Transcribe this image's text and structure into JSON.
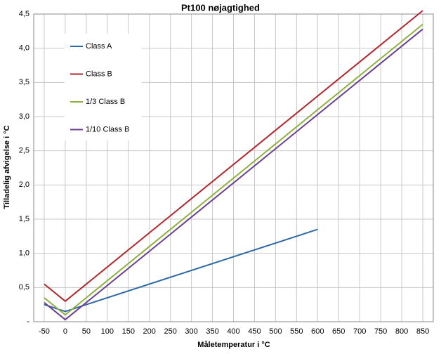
{
  "chart_data": {
    "type": "line",
    "title": "Pt100 nøjagtighed",
    "x_label": "Måletemperatur i °C",
    "y_label": "Tilladelig afvigelse i °C",
    "xlim": [
      -75,
      875
    ],
    "xticks": [
      -50,
      0,
      50,
      100,
      150,
      200,
      250,
      300,
      350,
      400,
      450,
      500,
      550,
      600,
      650,
      700,
      750,
      800,
      850
    ],
    "ylim": [
      0,
      4.5
    ],
    "yticks": [
      {
        "value": 0,
        "label": "-"
      },
      {
        "value": 0.5,
        "label": "0,5"
      },
      {
        "value": 1,
        "label": "1,0"
      },
      {
        "value": 1.5,
        "label": "1,5"
      },
      {
        "value": 2,
        "label": "2,0"
      },
      {
        "value": 2.5,
        "label": "2,5"
      },
      {
        "value": 3,
        "label": "3,0"
      },
      {
        "value": 3.5,
        "label": "3,5"
      },
      {
        "value": 4,
        "label": "4,0"
      },
      {
        "value": 4.5,
        "label": "4,5"
      }
    ],
    "grid": true,
    "series": [
      {
        "name": "Class A",
        "color": "#2e6aa6",
        "x": [
          -50,
          0,
          600
        ],
        "values": [
          0.25,
          0.15,
          1.35
        ]
      },
      {
        "name": "Class B",
        "color": "#b0262c",
        "x": [
          -50,
          0,
          850
        ],
        "values": [
          0.55,
          0.3,
          4.55
        ]
      },
      {
        "name": "1/3 Class B",
        "color": "#8db040",
        "x": [
          -50,
          0,
          850
        ],
        "values": [
          0.35,
          0.1,
          4.35
        ]
      },
      {
        "name": "1/10 Class B",
        "color": "#6a3f92",
        "x": [
          -50,
          0,
          850
        ],
        "values": [
          0.28,
          0.03,
          4.28
        ]
      }
    ]
  }
}
